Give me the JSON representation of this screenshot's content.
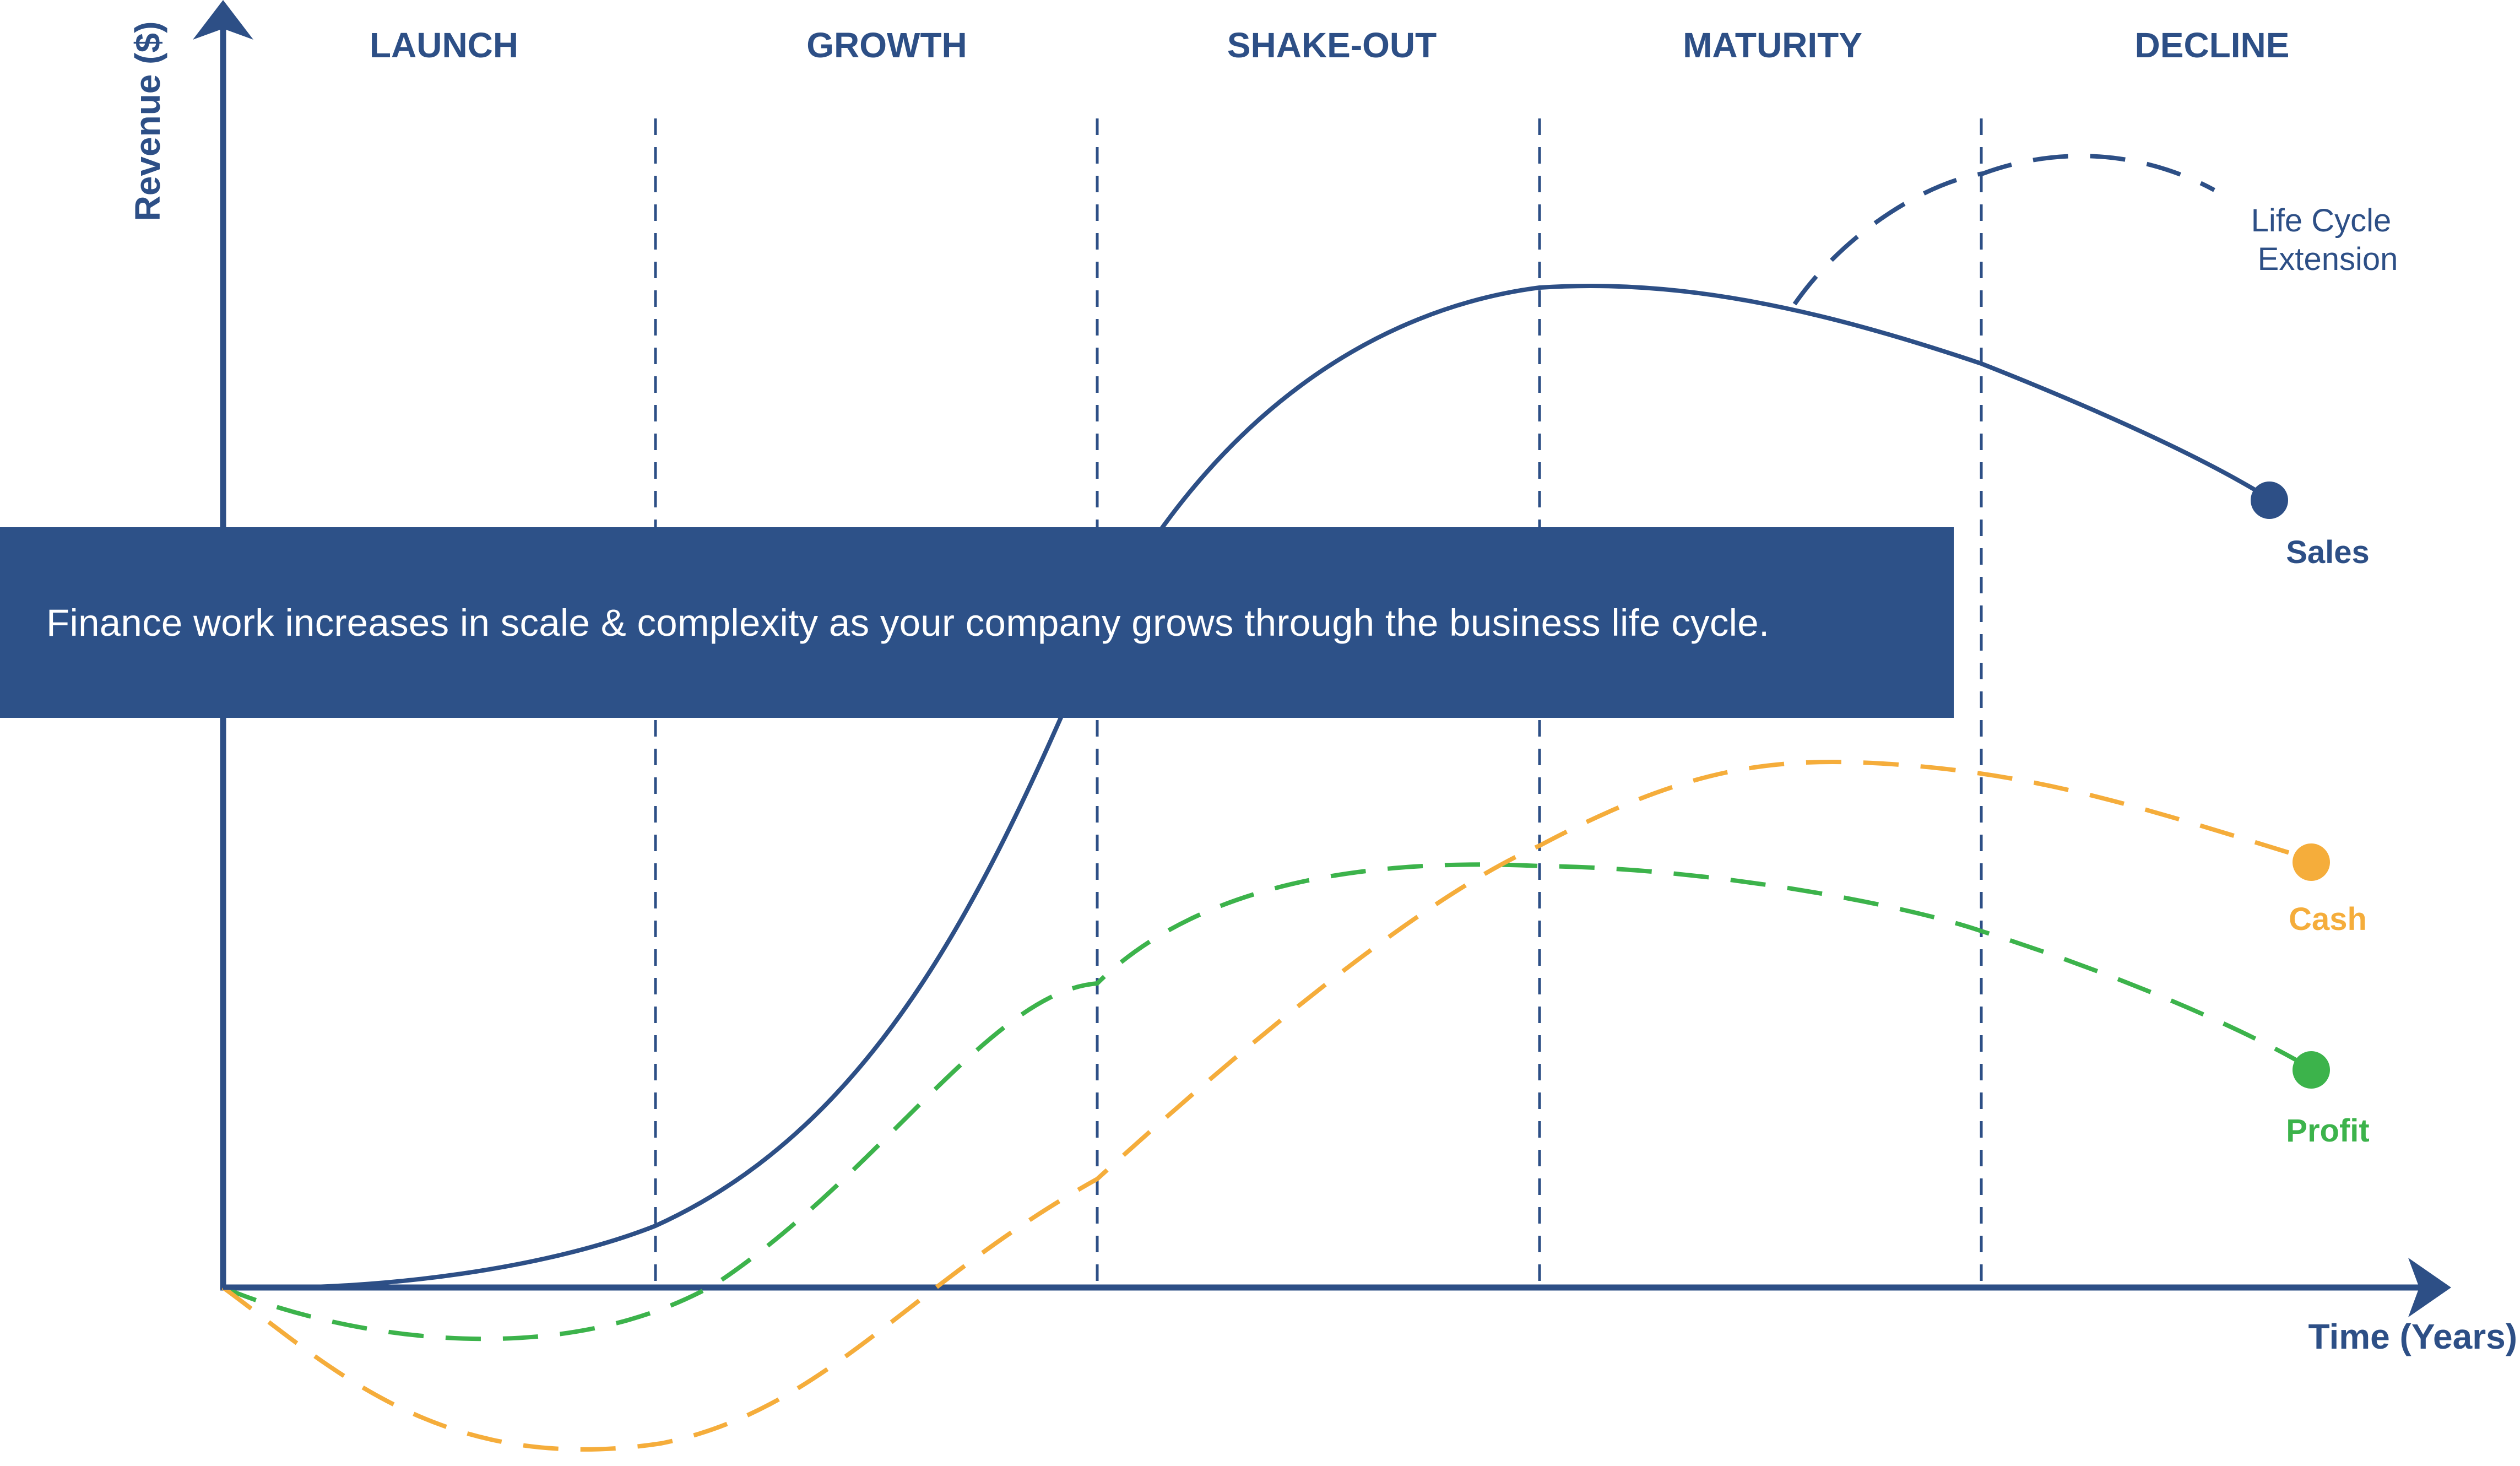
{
  "stages": [
    "LAUNCH",
    "GROWTH",
    "SHAKE-OUT",
    "MATURITY",
    "DECLINE"
  ],
  "axes": {
    "y_label": "Revenue ($)",
    "x_label": "Time (Years)"
  },
  "banner": {
    "text": "Finance work increases in scale & complexity as your company grows through the business life cycle."
  },
  "curves": {
    "sales": {
      "label": "Sales",
      "color": "#2d4f86"
    },
    "extension": {
      "label_line1": "Life Cycle",
      "label_line2": "Extension",
      "color": "#2d4f86"
    },
    "cash": {
      "label": "Cash",
      "color": "#f5ad3b"
    },
    "profit": {
      "label": "Profit",
      "color": "#3cb34b"
    }
  },
  "colors": {
    "axis": "#2d4f86",
    "heading": "#2d4f86",
    "banner_bg": "#2d5188",
    "banner_text": "#ffffff"
  }
}
